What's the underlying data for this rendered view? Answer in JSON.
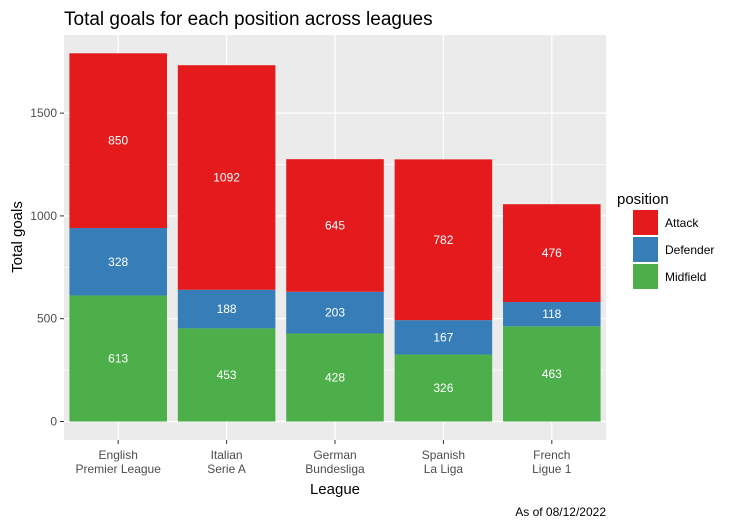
{
  "chart_data": {
    "type": "bar",
    "stacked": true,
    "title": "Total goals for each position across leagues",
    "xlabel": "League",
    "ylabel": "Total goals",
    "caption": "As of 08/12/2022",
    "categories": [
      [
        "English",
        "Premier League"
      ],
      [
        "Italian",
        "Serie A"
      ],
      [
        "German",
        "Bundesliga"
      ],
      [
        "Spanish",
        "La Liga"
      ],
      [
        "French",
        "Ligue 1"
      ]
    ],
    "series": [
      {
        "name": "Midfield",
        "color": "#4DAF4A",
        "values": [
          613,
          453,
          428,
          326,
          463
        ]
      },
      {
        "name": "Defender",
        "color": "#377EB8",
        "values": [
          328,
          188,
          203,
          167,
          118
        ]
      },
      {
        "name": "Attack",
        "color": "#E41A1C",
        "values": [
          850,
          1092,
          645,
          782,
          476
        ]
      }
    ],
    "legend_order": [
      "Attack",
      "Defender",
      "Midfield"
    ],
    "legend_title": "position",
    "legend_position": "right",
    "ylim": [
      -90,
      1880
    ],
    "yticks": [
      0,
      500,
      1000,
      1500
    ],
    "grid": true,
    "panel_background": "#EBEBEB"
  }
}
